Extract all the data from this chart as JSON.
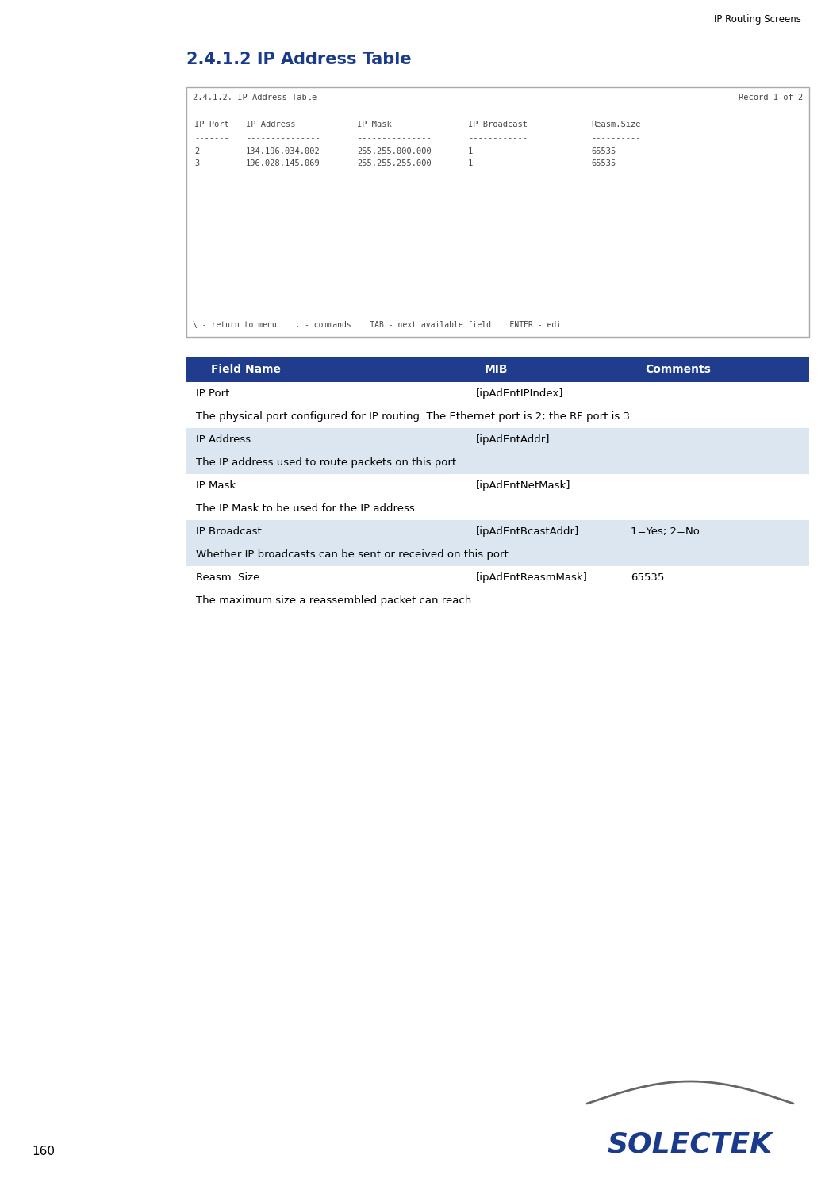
{
  "page_header": "IP Routing Screens",
  "section_title": "2.4.1.2 IP Address Table",
  "terminal_title": "2.4.1.2. IP Address Table",
  "terminal_record": "Record 1 of 2",
  "terminal_columns": [
    "IP Port",
    "IP Address",
    "IP Mask",
    "IP Broadcast",
    "Reasm.Size"
  ],
  "terminal_dashes": [
    "-------",
    "---------------",
    "---------------",
    "------------",
    "----------"
  ],
  "terminal_rows": [
    [
      "2",
      "134.196.034.002",
      "255.255.000.000",
      "1",
      "65535"
    ],
    [
      "3",
      "196.028.145.069",
      "255.255.255.000",
      "1",
      "65535"
    ]
  ],
  "terminal_footer": "\\ - return to menu    . - commands    TAB - next available field    ENTER - edi",
  "table_header": [
    "Field Name",
    "MIB",
    "Comments"
  ],
  "table_rows": [
    {
      "field": "IP Port",
      "mib": "[ipAdEntIPIndex]",
      "comments": "",
      "description": "The physical port configured for IP routing. The Ethernet port is 2; the RF port is 3.",
      "row_shaded": false,
      "desc_shaded": false
    },
    {
      "field": "IP Address",
      "mib": "[ipAdEntAddr]",
      "comments": "",
      "description": "The IP address used to route packets on this port.",
      "row_shaded": true,
      "desc_shaded": true
    },
    {
      "field": "IP Mask",
      "mib": "[ipAdEntNetMask]",
      "comments": "",
      "description": "The IP Mask to be used for the IP address.",
      "row_shaded": false,
      "desc_shaded": false
    },
    {
      "field": "IP Broadcast",
      "mib": "[ipAdEntBcastAddr]",
      "comments": "1=Yes; 2=No",
      "description": "Whether IP broadcasts can be sent or received on this port.",
      "row_shaded": true,
      "desc_shaded": true
    },
    {
      "field": "Reasm. Size",
      "mib": "[ipAdEntReasmMask]",
      "comments": "65535",
      "description": "The maximum size a reassembled packet can reach.",
      "row_shaded": false,
      "desc_shaded": false
    }
  ],
  "page_number": "160",
  "logo_text": "SOLECTEK",
  "title_color": "#1a3a8c",
  "header_bg_color": "#1f3d8c",
  "header_text_color": "#ffffff",
  "shaded_row_color": "#dce6f0",
  "terminal_text_color": "#444444",
  "terminal_border": "#aaaaaa"
}
